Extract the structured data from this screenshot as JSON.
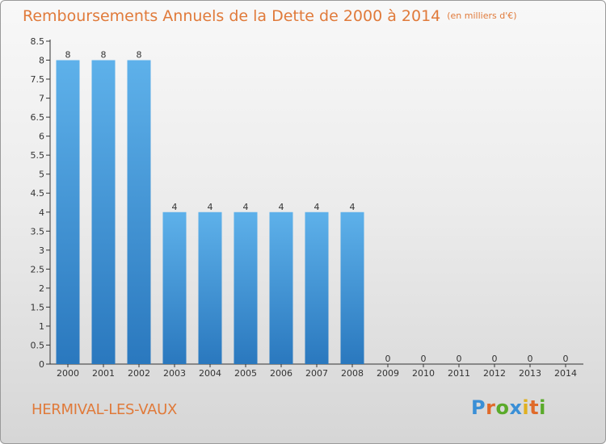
{
  "title": "Remboursements Annuels de la Dette de 2000 à 2014",
  "unit_label": "(en milliers d'€)",
  "commune": "HERMIVAL-LES-VAUX",
  "logo": {
    "text": "Proxiti",
    "letter_colors": [
      "#3a8fd6",
      "#e06a2a",
      "#5aaa2a",
      "#3a8fd6",
      "#e0b020",
      "#e06a2a",
      "#5aaa2a"
    ]
  },
  "colors": {
    "title": "#e07a3a",
    "bar_top": "#5eb1ea",
    "bar_bottom": "#2a78be"
  },
  "chart_data": {
    "type": "bar",
    "title": "Remboursements Annuels de la Dette de 2000 à 2014",
    "categories": [
      "2000",
      "2001",
      "2002",
      "2003",
      "2004",
      "2005",
      "2006",
      "2007",
      "2008",
      "2009",
      "2010",
      "2011",
      "2012",
      "2013",
      "2014"
    ],
    "values": [
      8,
      8,
      8,
      4,
      4,
      4,
      4,
      4,
      4,
      0,
      0,
      0,
      0,
      0,
      0
    ],
    "data_labels": [
      "8",
      "8",
      "8",
      "4",
      "4",
      "4",
      "4",
      "4",
      "4",
      "0",
      "0",
      "0",
      "0",
      "0",
      "0"
    ],
    "ylim": [
      0,
      8.5
    ],
    "yticks": [
      {
        "v": 0,
        "label": "0"
      },
      {
        "v": 0.5,
        "label": "0.5"
      },
      {
        "v": 1,
        "label": "1"
      },
      {
        "v": 1.5,
        "label": "1.5"
      },
      {
        "v": 2,
        "label": "2"
      },
      {
        "v": 2.5,
        "label": "2.5"
      },
      {
        "v": 3,
        "label": "3"
      },
      {
        "v": 3.5,
        "label": "3.5"
      },
      {
        "v": 4,
        "label": "4"
      },
      {
        "v": 4.5,
        "label": "4.5"
      },
      {
        "v": 5,
        "label": "5"
      },
      {
        "v": 5.5,
        "label": "5.5"
      },
      {
        "v": 6,
        "label": "6"
      },
      {
        "v": 6.5,
        "label": "6.5"
      },
      {
        "v": 7,
        "label": "7"
      },
      {
        "v": 7.5,
        "label": "7.5"
      },
      {
        "v": 8,
        "label": "8"
      },
      {
        "v": 8.5,
        "label": "8.5"
      }
    ],
    "grid": false
  }
}
